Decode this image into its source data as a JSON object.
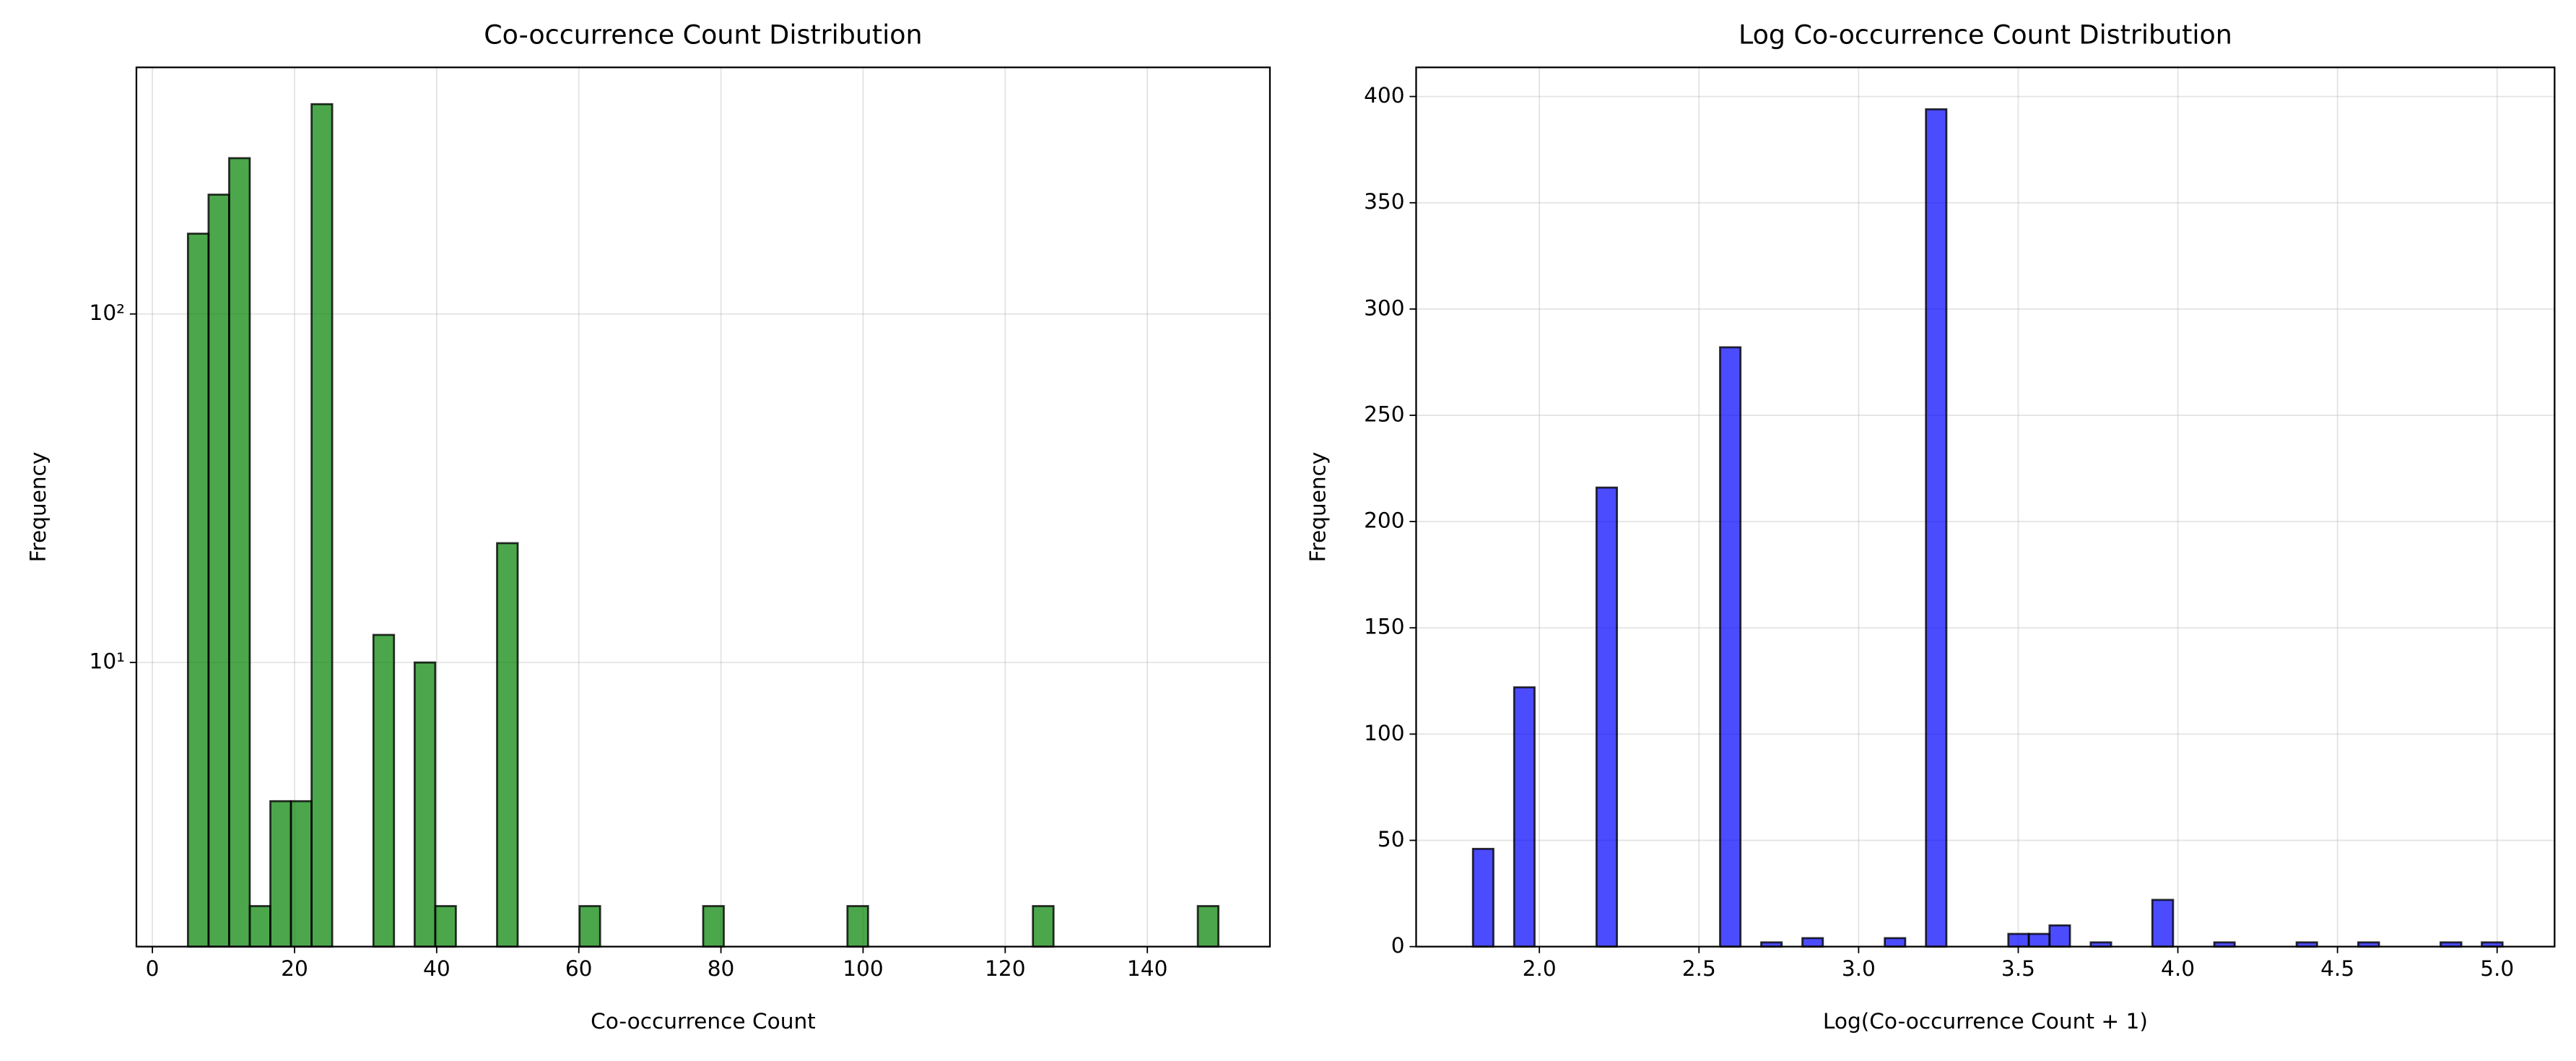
{
  "chart_data": [
    {
      "type": "histogram",
      "title": "Co-occurrence Count Distribution",
      "xlabel": "Co-occurrence Count",
      "ylabel": "Frequency",
      "bins": [
        5,
        7.9,
        10.8,
        13.7,
        16.6,
        19.5,
        22.4,
        25.3,
        28.2,
        31.1,
        34,
        36.9,
        39.8,
        42.7,
        45.6,
        48.5,
        51.4,
        54.3,
        57.2,
        60.1,
        63,
        65.9,
        68.8,
        71.7,
        74.6,
        77.5,
        80.4,
        83.3,
        86.2,
        89.1,
        92,
        94.9,
        97.8,
        100.7,
        103.6,
        106.5,
        109.4,
        112.3,
        115.2,
        118.1,
        121,
        123.9,
        126.8,
        129.7,
        132.6,
        135.5,
        138.4,
        141.3,
        144.2,
        147.1,
        150
      ],
      "counts": [
        170,
        220,
        280,
        2,
        4,
        4,
        400,
        0,
        0,
        12,
        0,
        10,
        2,
        0,
        0,
        22,
        0,
        0,
        0,
        2,
        0,
        0,
        0,
        0,
        0,
        2,
        0,
        0,
        0,
        0,
        0,
        0,
        2,
        0,
        0,
        0,
        0,
        0,
        0,
        0,
        0,
        2,
        0,
        0,
        0,
        0,
        0,
        0,
        0,
        2
      ],
      "color": "#008000",
      "log_y": true,
      "grid": true,
      "xlim": [
        -2.25,
        157.25
      ],
      "ylim": [
        1.53,
        510
      ],
      "xticks": [
        0,
        20,
        40,
        60,
        80,
        100,
        120,
        140
      ],
      "yticks": [
        {
          "value": 10,
          "label": "10¹"
        },
        {
          "value": 100,
          "label": "10²"
        }
      ]
    },
    {
      "type": "histogram",
      "title": "Log Co-occurrence Count Distribution",
      "xlabel": "Log(Co-occurrence Count + 1)",
      "ylabel": "Frequency",
      "bins": [
        1.792,
        1.856,
        1.921,
        1.985,
        2.05,
        2.114,
        2.179,
        2.243,
        2.308,
        2.372,
        2.437,
        2.501,
        2.566,
        2.63,
        2.695,
        2.759,
        2.824,
        2.888,
        2.953,
        3.017,
        3.082,
        3.146,
        3.211,
        3.275,
        3.34,
        3.404,
        3.469,
        3.533,
        3.598,
        3.662,
        3.727,
        3.791,
        3.856,
        3.92,
        3.985,
        4.049,
        4.114,
        4.178,
        4.243,
        4.307,
        4.372,
        4.436,
        4.501,
        4.565,
        4.63,
        4.694,
        4.759,
        4.823,
        4.888,
        4.952,
        5.017
      ],
      "counts": [
        46,
        0,
        122,
        0,
        0,
        0,
        216,
        0,
        0,
        0,
        0,
        0,
        282,
        0,
        2,
        0,
        4,
        0,
        0,
        0,
        4,
        0,
        394,
        0,
        0,
        0,
        6,
        6,
        10,
        0,
        2,
        0,
        0,
        22,
        0,
        0,
        2,
        0,
        0,
        0,
        2,
        0,
        0,
        2,
        0,
        0,
        0,
        2,
        0,
        2
      ],
      "color": "#0000ff",
      "log_y": false,
      "grid": true,
      "xlim": [
        1.614,
        5.18
      ],
      "ylim": [
        0,
        413.7
      ],
      "xticks": [
        {
          "value": 2,
          "label": "2.0"
        },
        2.5,
        {
          "value": 3,
          "label": "3.0"
        },
        3.5,
        {
          "value": 4,
          "label": "4.0"
        },
        4.5,
        {
          "value": 5,
          "label": "5.0"
        }
      ],
      "yticks": [
        0,
        50,
        100,
        150,
        200,
        250,
        300,
        350,
        400
      ]
    }
  ]
}
